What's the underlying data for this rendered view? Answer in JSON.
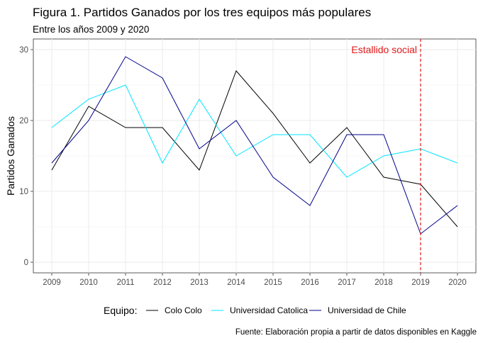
{
  "chart_data": {
    "type": "line",
    "title": "Figura 1. Partidos Ganados por los tres equipos más populares",
    "subtitle": "Entre los años 2009 y 2020",
    "xlabel": "",
    "ylabel": "Partidos Ganados",
    "x": [
      2009,
      2010,
      2011,
      2012,
      2013,
      2014,
      2015,
      2016,
      2017,
      2018,
      2019,
      2020
    ],
    "xlim": [
      2008.5,
      2020.5
    ],
    "ylim": [
      -1.5,
      31.5
    ],
    "yticks": [
      0,
      10,
      20,
      30
    ],
    "grid": true,
    "legend": {
      "title": "Equipo:",
      "position": "bottom"
    },
    "series": [
      {
        "name": "Colo Colo",
        "color": "#000000",
        "values": [
          13,
          22,
          19,
          19,
          13,
          27,
          21,
          14,
          19,
          12,
          11,
          5
        ]
      },
      {
        "name": "Universidad Catolica",
        "color": "#00e5ff",
        "values": [
          19,
          23,
          25,
          14,
          23,
          15,
          18,
          18,
          12,
          15,
          16,
          14
        ]
      },
      {
        "name": "Universidad de Chile",
        "color": "#00008b",
        "values": [
          14,
          20,
          29,
          26,
          16,
          20,
          12,
          8,
          18,
          18,
          4,
          8
        ]
      }
    ],
    "annotations": [
      {
        "type": "vline",
        "x": 2019,
        "color": "#e41a1c",
        "style": "dashed"
      },
      {
        "type": "text",
        "x": 2019,
        "y": 30,
        "text": "Estallido social",
        "color": "#e41a1c"
      }
    ],
    "caption": "Fuente: Elaboración propia a partir de datos disponibles en Kaggle"
  }
}
